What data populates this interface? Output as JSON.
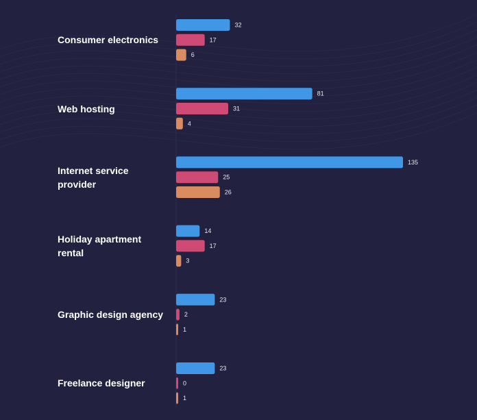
{
  "chart_data": {
    "type": "bar",
    "orientation": "horizontal",
    "categories": [
      "Consumer electronics",
      "Web hosting",
      "Internet service provider",
      "Holiday apartment rental",
      "Graphic design agency",
      "Freelance designer"
    ],
    "series": [
      {
        "name": "Series 1",
        "color": "#3f97e6",
        "values": [
          32,
          81,
          135,
          14,
          23,
          23
        ]
      },
      {
        "name": "Series 2",
        "color": "#cf4a75",
        "values": [
          17,
          31,
          25,
          17,
          2,
          0
        ]
      },
      {
        "name": "Series 3",
        "color": "#d98c5f",
        "values": [
          6,
          4,
          26,
          3,
          1,
          1
        ]
      }
    ],
    "xlim": [
      0,
      135
    ],
    "title": "",
    "xlabel": "",
    "ylabel": "",
    "grid": false,
    "legend": "none"
  },
  "colors": {
    "background": "#22213f",
    "label_text": "#ffffff",
    "value_text": "#e6e6ef",
    "decor_lines": "#2b2a4a"
  }
}
